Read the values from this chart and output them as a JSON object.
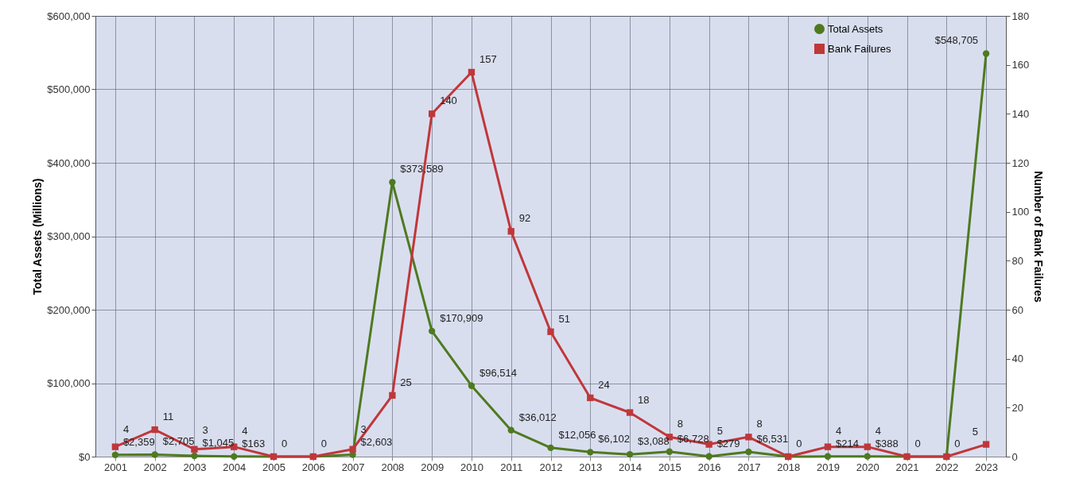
{
  "chart_data": {
    "type": "line",
    "ylabel": "Total Assets (Millions)",
    "y2label": "Number of Bank Failures",
    "categories": [
      "2001",
      "2002",
      "2003",
      "2004",
      "2005",
      "2006",
      "2007",
      "2008",
      "2009",
      "2010",
      "2011",
      "2012",
      "2013",
      "2014",
      "2015",
      "2016",
      "2017",
      "2018",
      "2019",
      "2020",
      "2021",
      "2022",
      "2023"
    ],
    "series": [
      {
        "name": "Total Assets",
        "color": "#4e7a1f",
        "marker": "circle",
        "values": [
          2359,
          2705,
          1045,
          163,
          0,
          0,
          2603,
          373589,
          170909,
          96514,
          36012,
          12056,
          6102,
          3088,
          6728,
          279,
          6531,
          0,
          214,
          388,
          0,
          0,
          548705
        ],
        "value_labels": [
          "$2,359",
          "$2,705",
          "$1,045",
          "$163",
          null,
          null,
          "$2,603",
          "$373,589",
          "$170,909",
          "$96,514",
          "$36,012",
          "$12,056",
          "$6,102",
          "$3,088",
          "$6,728",
          "$279",
          "$6,531",
          null,
          "$214",
          "$388",
          null,
          null,
          "$548,705"
        ]
      },
      {
        "name": "Bank Failures",
        "color": "#c0373a",
        "marker": "square",
        "axis": "y2",
        "values": [
          4,
          11,
          3,
          4,
          0,
          0,
          3,
          25,
          140,
          157,
          92,
          51,
          24,
          18,
          8,
          5,
          8,
          0,
          4,
          4,
          0,
          0,
          5
        ],
        "value_labels": [
          "4",
          "11",
          "3",
          "4",
          "0",
          "0",
          "3",
          "25",
          "140",
          "157",
          "92",
          "51",
          "24",
          "18",
          "8",
          "5",
          "8",
          "0",
          "4",
          "4",
          "0",
          "0",
          "5"
        ]
      }
    ],
    "ylim": [
      0,
      600000
    ],
    "yticks": [
      {
        "value": 0,
        "label": "$0"
      },
      {
        "value": 100000,
        "label": "$100,000"
      },
      {
        "value": 200000,
        "label": "$200,000"
      },
      {
        "value": 300000,
        "label": "$300,000"
      },
      {
        "value": 400000,
        "label": "$400,000"
      },
      {
        "value": 500000,
        "label": "$500,000"
      },
      {
        "value": 600000,
        "label": "$600,000"
      }
    ],
    "y2lim": [
      0,
      180
    ],
    "y2ticks": [
      0,
      20,
      40,
      60,
      80,
      100,
      120,
      140,
      160,
      180
    ],
    "grid": true,
    "legend": "top right",
    "line_style": "solid"
  }
}
